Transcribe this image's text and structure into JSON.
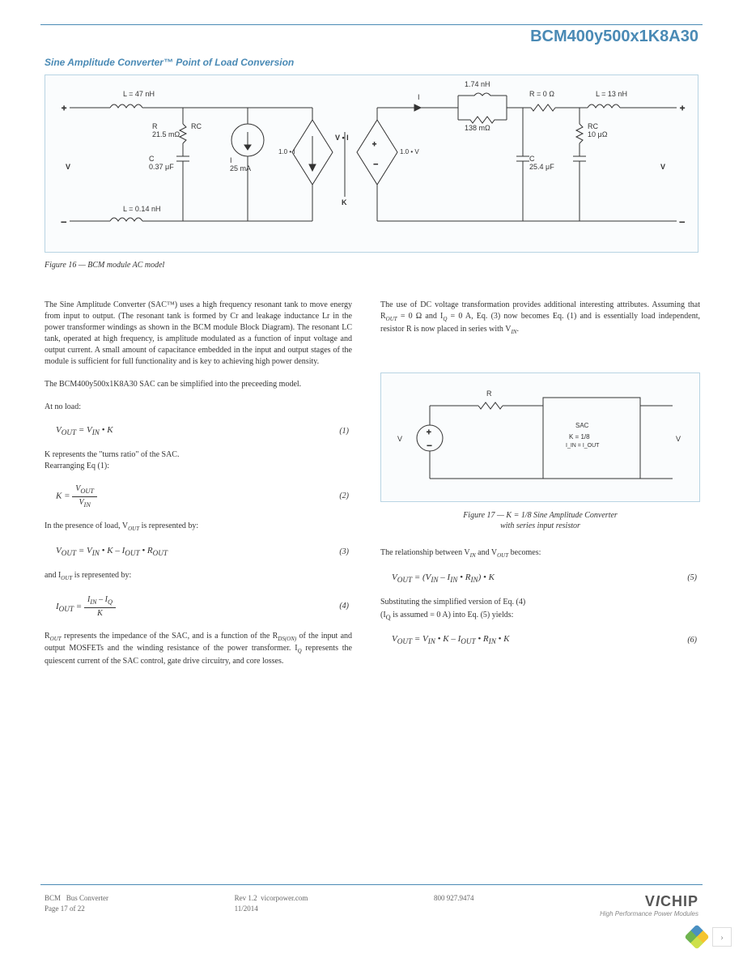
{
  "product_code": "BCM400y500x1K8A30",
  "section_title": "Sine Amplitude Converter™ Point of Load Conversion",
  "figure16": {
    "caption": "Figure 16 — BCM module AC model",
    "labels": {
      "L_in_leak": "L = 47 nH",
      "R_in": "R\n21.5 mΩ",
      "RC_in": "RC",
      "C_in": "C\n0.37 μF",
      "V_in": "V",
      "L_in_bot": "L = 0.14 nH",
      "I_q": "I\n25 mA",
      "src1": "1.0 • I",
      "src2": "1.0 • V",
      "V_I": "V • I",
      "K": "K",
      "I_in_top": "I",
      "L_top": "1.74 nH",
      "R_top": "138 mΩ",
      "R_series": "R = 0 Ω",
      "L_out_leak": "L = 13 nH",
      "RC_out": "RC\n10 μΩ",
      "C_out": "C\n25.4 μF",
      "V_out": "V"
    }
  },
  "left_col": {
    "p1": "The Sine Amplitude Converter (SAC™) uses a high frequency resonant tank to move energy from input to output. (The resonant tank is formed by Cr and leakage inductance Lr in the power transformer windings as shown in the BCM module Block Diagram). The resonant LC tank, operated at high frequency, is amplitude modulated as a function of input voltage and output current. A small amount of capacitance embedded in the input and output stages of the module is sufficient for full functionality and is key to achieving high power density.",
    "p2": "The BCM400y500x1K8A30 SAC can be simplified into the preceeding model.",
    "p3": "At no load:",
    "p4": "K represents the \"turns ratio\" of the SAC.\nRearranging Eq (1):",
    "p5_a": "In the presence of load, V",
    "p5_b": " is represented by:",
    "p6_a": "and I",
    "p6_b": " is represented by:",
    "p7_a": "R",
    "p7_b": " represents the impedance of the SAC, and is a function of the R",
    "p7_c": " of the input and output MOSFETs and the winding resistance of the power transformer. I",
    "p7_d": " represents the quiescent current of the SAC control, gate drive circuitry, and core losses.",
    "eq1": {
      "text": "V<sub>OUT</sub> = V<sub>IN</sub> • K",
      "num": "(1)"
    },
    "eq2": {
      "top": "V<sub>OUT</sub>",
      "bot": "V<sub>IN</sub>",
      "lhs": "K = ",
      "num": "(2)"
    },
    "eq3": {
      "text": "V<sub>OUT</sub> = V<sub>IN</sub> • K – I<sub>OUT</sub> • R<sub>OUT</sub>",
      "num": "(3)"
    },
    "eq4": {
      "top": "I<sub>IN</sub> – I<sub>Q</sub>",
      "bot": "K",
      "lhs": "I<sub>OUT</sub> = ",
      "num": "(4)"
    }
  },
  "right_col": {
    "p1_a": "The use of DC voltage transformation provides additional interesting attributes. Assuming that R",
    "p1_b": " = 0 Ω and I",
    "p1_c": " = 0 A, Eq. (3) now becomes Eq. (1) and is essentially load independent, resistor R is now placed in series with V",
    "p1_d": ".",
    "fig17_caption_a": "Figure 17 — K = 1/8 Sine Amplitude Converter",
    "fig17_caption_b": "with series input resistor",
    "p2_a": "The relationship between V",
    "p2_b": " and V",
    "p2_c": " becomes:",
    "eq5": {
      "text": "V<sub>OUT</sub> = (V<sub>IN</sub> – I<sub>IN</sub> • R<sub>IN</sub>) • K",
      "num": "(5)"
    },
    "p3_a": "Substituting the simplified version of Eq. (4)",
    "p3_b": "(I<sub>Q</sub> is assumed = 0 A) into Eq. (5) yields:",
    "eq6": {
      "text": "V<sub>OUT</sub> = V<sub>IN</sub> • K – I<sub>OUT</sub> • R<sub>IN</sub> • K",
      "num": "(6)"
    }
  },
  "figure17": {
    "labels": {
      "V_in": "V",
      "R": "R",
      "sac_title": "SAC",
      "k_text": "K = 1/8",
      "i_line": "I_IN = I_OUT",
      "V_out": "V"
    }
  },
  "footer": {
    "bcm": "BCM",
    "bcm2": "Bus Converter",
    "page": "Page 17 of 22",
    "rev": "Rev 1.2",
    "site": "vicorpower.com",
    "date": "11/2014",
    "phone": "800 927.9474",
    "logo_main": "VICHIP",
    "logo_tag": "High Performance Power Modules"
  },
  "style": {
    "accent_color": "#4a8ab5",
    "diagram_border": "#b8d4e3",
    "diagram_bg": "#fafcfd",
    "text_color": "#333333",
    "footer_color": "#666666",
    "body_font_size": 10,
    "title_font_size": 20
  }
}
